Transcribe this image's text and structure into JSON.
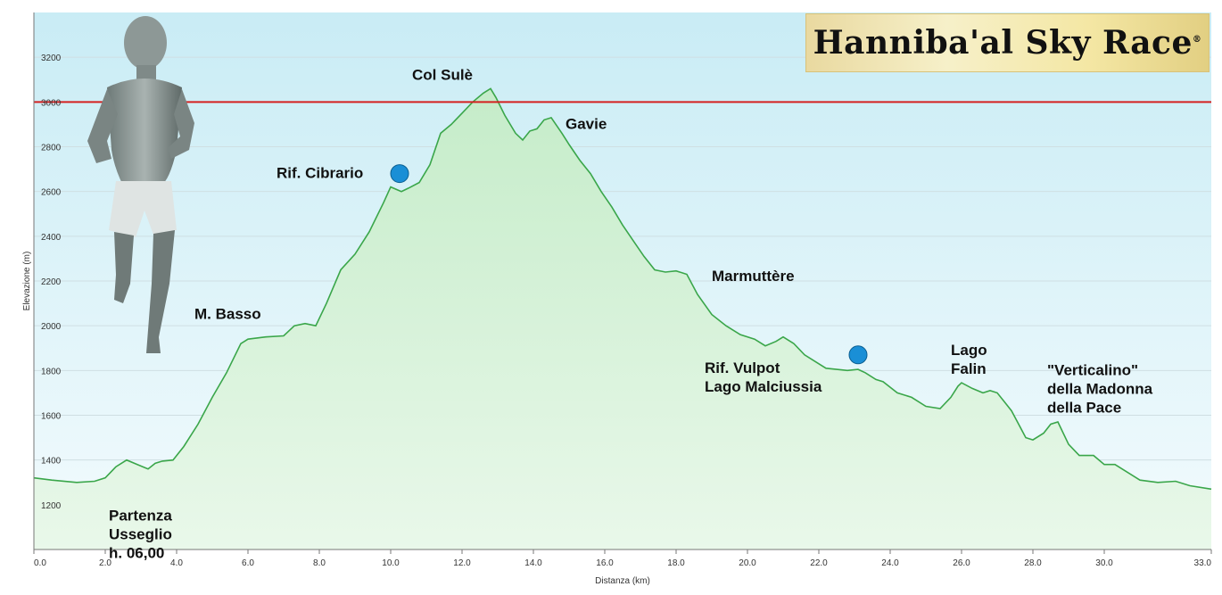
{
  "logo": {
    "text": "Hanniba'al Sky Race",
    "mark": "®"
  },
  "runner_image": "runner-figure",
  "chart_data": {
    "type": "area",
    "title": "",
    "xlabel": "Distanza  (km)",
    "ylabel": "Elevazione (m)",
    "xlim": [
      0,
      33
    ],
    "ylim": [
      1000,
      3400
    ],
    "x_ticks": [
      0,
      2,
      4,
      6,
      8,
      10,
      12,
      14,
      16,
      18,
      20,
      22,
      24,
      26,
      28,
      30,
      33
    ],
    "x_tick_labels": [
      "0.0",
      "2.0",
      "4.0",
      "6.0",
      "8.0",
      "10.0",
      "12.0",
      "14.0",
      "16.0",
      "18.0",
      "20.0",
      "22.0",
      "24.0",
      "26.0",
      "28.0",
      "30.0",
      "33.0"
    ],
    "y_ticks": [
      1200,
      1400,
      1600,
      1800,
      2000,
      2200,
      2400,
      2600,
      2800,
      3000,
      3200
    ],
    "y_tick_labels": [
      "1200",
      "1400",
      "1600",
      "1800",
      "2000",
      "2200",
      "2400",
      "2600",
      "2800",
      "3000",
      "3200"
    ],
    "grid": true,
    "reference_line": {
      "y": 3000,
      "color": "#d42020"
    },
    "line_color": "#3aa64a",
    "series": [
      {
        "x": [
          0,
          0.5,
          1.2,
          1.7,
          2.0,
          2.3,
          2.6,
          2.9,
          3.2,
          3.4,
          3.6,
          3.9,
          4.2,
          4.6,
          5.0,
          5.4,
          5.8,
          6.0,
          6.5,
          7.0,
          7.3,
          7.6,
          7.9,
          8.2,
          8.6,
          9.0,
          9.4,
          9.8,
          10.0,
          10.3,
          10.5,
          10.8,
          11.1,
          11.4,
          11.7,
          12.0,
          12.3,
          12.6,
          12.8,
          12.95,
          13.2,
          13.5,
          13.7,
          13.9,
          14.1,
          14.3,
          14.5,
          14.8,
          15.0,
          15.3,
          15.6,
          15.9,
          16.2,
          16.5,
          16.8,
          17.1,
          17.4,
          17.7,
          18.0,
          18.3,
          18.6,
          19.0,
          19.4,
          19.8,
          20.2,
          20.5,
          20.8,
          21.0,
          21.3,
          21.6,
          21.9,
          22.2,
          22.5,
          22.8,
          23.1,
          23.3,
          23.6,
          23.8,
          24.2,
          24.6,
          25.0,
          25.4,
          25.7,
          25.9,
          26.0,
          26.3,
          26.6,
          26.8,
          27.0,
          27.2,
          27.4,
          27.6,
          27.8,
          28.0,
          28.3,
          28.5,
          28.7,
          29.0,
          29.3,
          29.7,
          30.0,
          30.3,
          30.6,
          31.0,
          31.5,
          32.0,
          32.4,
          33.0
        ],
        "y": [
          1320,
          1310,
          1300,
          1305,
          1320,
          1370,
          1400,
          1380,
          1360,
          1385,
          1395,
          1400,
          1460,
          1560,
          1680,
          1790,
          1920,
          1940,
          1950,
          1955,
          2000,
          2010,
          2000,
          2100,
          2250,
          2320,
          2420,
          2550,
          2620,
          2600,
          2615,
          2640,
          2720,
          2860,
          2900,
          2950,
          3000,
          3040,
          3060,
          3020,
          2940,
          2860,
          2830,
          2870,
          2880,
          2920,
          2930,
          2860,
          2810,
          2740,
          2680,
          2600,
          2530,
          2450,
          2380,
          2310,
          2250,
          2240,
          2245,
          2230,
          2140,
          2050,
          2000,
          1960,
          1940,
          1910,
          1930,
          1950,
          1920,
          1870,
          1840,
          1810,
          1805,
          1800,
          1805,
          1790,
          1760,
          1750,
          1700,
          1680,
          1640,
          1630,
          1680,
          1730,
          1745,
          1720,
          1700,
          1710,
          1700,
          1660,
          1620,
          1560,
          1500,
          1490,
          1520,
          1560,
          1570,
          1470,
          1420,
          1420,
          1380,
          1380,
          1350,
          1310,
          1300,
          1305,
          1285,
          1270
        ]
      }
    ],
    "annotations": [
      {
        "lines": [
          "Partenza",
          "Usseglio",
          "h. 06,00"
        ],
        "x": 2.1,
        "y": 1130
      },
      {
        "lines": [
          "M. Basso"
        ],
        "x": 4.5,
        "y": 2030
      },
      {
        "lines": [
          "Rif. Cibrario"
        ],
        "x": 6.8,
        "y": 2660
      },
      {
        "lines": [
          "Col Sulè"
        ],
        "x": 10.6,
        "y": 3100
      },
      {
        "lines": [
          "Gavie"
        ],
        "x": 14.9,
        "y": 2880
      },
      {
        "lines": [
          "Marmuttère"
        ],
        "x": 19.0,
        "y": 2200
      },
      {
        "lines": [
          "Rif. Vulpot",
          "Lago Malciussia"
        ],
        "x": 18.8,
        "y": 1790
      },
      {
        "lines": [
          "Lago",
          "Falin"
        ],
        "x": 25.7,
        "y": 1870
      },
      {
        "lines": [
          "\"Verticalino\"",
          "della Madonna",
          "della Pace"
        ],
        "x": 28.4,
        "y": 1780
      }
    ],
    "markers": [
      {
        "x": 10.25,
        "y": 2680,
        "color": "#1a8fd6"
      },
      {
        "x": 23.1,
        "y": 1870,
        "color": "#1a8fd6"
      }
    ]
  }
}
